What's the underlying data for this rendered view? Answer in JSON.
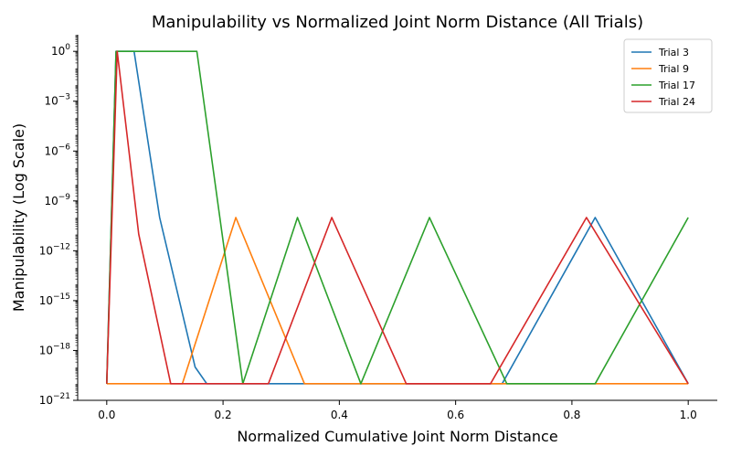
{
  "chart_data": {
    "type": "line",
    "title": "Manipulability vs Normalized Joint Norm Distance (All Trials)",
    "xlabel": "Normalized Cumulative Joint Norm Distance",
    "ylabel": "Manipulability (Log Scale)",
    "xscale": "linear",
    "yscale": "log",
    "xlim": [
      -0.05,
      1.05
    ],
    "ylim": [
      1e-21,
      10
    ],
    "xticks": [
      0.0,
      0.2,
      0.4,
      0.6,
      0.8,
      1.0
    ],
    "xtick_labels": [
      "0.0",
      "0.2",
      "0.4",
      "0.6",
      "0.8",
      "1.0"
    ],
    "yticks": [
      1e-21,
      1e-18,
      1e-15,
      1e-12,
      1e-09,
      1e-06,
      0.001,
      1
    ],
    "ytick_labels": [
      {
        "base": "10",
        "exp": "−21"
      },
      {
        "base": "10",
        "exp": "−18"
      },
      {
        "base": "10",
        "exp": "−15"
      },
      {
        "base": "10",
        "exp": "−12"
      },
      {
        "base": "10",
        "exp": "−9"
      },
      {
        "base": "10",
        "exp": "−6"
      },
      {
        "base": "10",
        "exp": "−3"
      },
      {
        "base": "10",
        "exp": "0"
      }
    ],
    "grid": false,
    "legend_position": "top-right",
    "series": [
      {
        "name": "Trial 3",
        "color": "#1f77b4",
        "x": [
          0.0,
          0.016,
          0.047,
          0.091,
          0.152,
          0.172,
          0.68,
          0.84,
          1.0
        ],
        "y": [
          1e-20,
          1.0,
          1.0,
          1e-10,
          1e-19,
          1e-20,
          1e-20,
          1e-10,
          1e-20
        ]
      },
      {
        "name": "Trial 9",
        "color": "#ff7f0e",
        "x": [
          0.0,
          0.13,
          0.222,
          0.34,
          0.68,
          1.0
        ],
        "y": [
          1e-20,
          1e-20,
          1e-10,
          1e-20,
          1e-20,
          1e-20
        ]
      },
      {
        "name": "Trial 17",
        "color": "#2ca02c",
        "x": [
          0.0,
          0.016,
          0.155,
          0.234,
          0.328,
          0.437,
          0.555,
          0.688,
          0.84,
          1.0
        ],
        "y": [
          1e-20,
          1.0,
          1.0,
          1e-20,
          1e-10,
          1e-20,
          1e-10,
          1e-20,
          1e-20,
          1e-10
        ]
      },
      {
        "name": "Trial 24",
        "color": "#d62728",
        "x": [
          0.0,
          0.018,
          0.055,
          0.11,
          0.278,
          0.387,
          0.515,
          0.66,
          0.825,
          1.0
        ],
        "y": [
          1e-20,
          1.0,
          1e-11,
          1e-20,
          1e-20,
          1e-10,
          1e-20,
          1e-20,
          1e-10,
          1e-20
        ]
      }
    ]
  }
}
